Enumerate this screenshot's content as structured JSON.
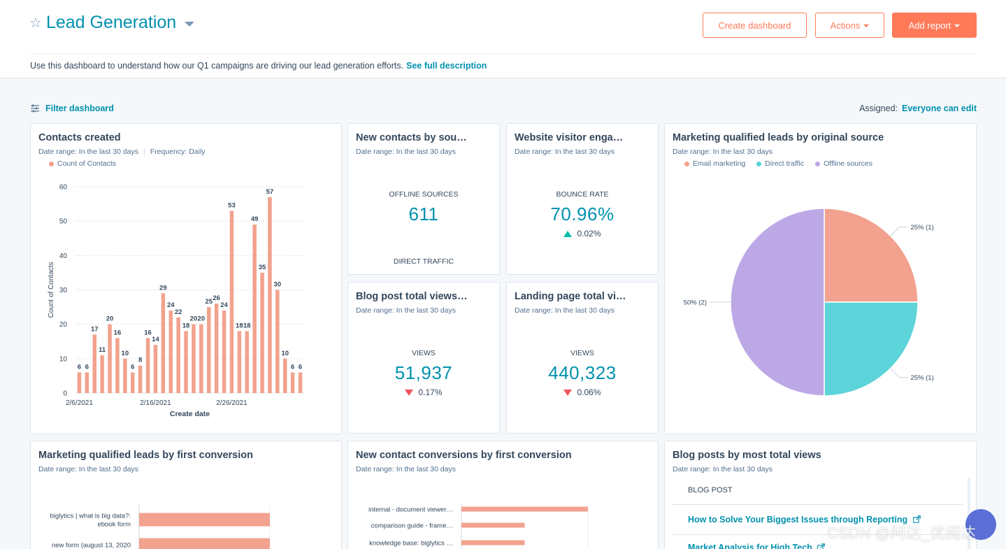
{
  "header": {
    "title": "Lead Generation",
    "create_dashboard": "Create dashboard",
    "actions": "Actions",
    "add_report": "Add report",
    "description": "Use this dashboard to understand how our Q1 campaigns are driving our lead generation efforts.",
    "see_full": "See full description"
  },
  "toolbar": {
    "filter": "Filter dashboard",
    "assigned_label": "Assigned:",
    "assigned_value": "Everyone can edit"
  },
  "colors": {
    "accent": "#0091ae",
    "orange": "#ff7a59",
    "bar": "#f2a28e",
    "teal": "#5cd4d9",
    "lavender": "#bda8e6"
  },
  "cards": {
    "contacts": {
      "title": "Contacts created",
      "date": "Date range: In the last 30 days",
      "freq": "Frequency: Daily",
      "legend": "Count of Contacts"
    },
    "new_contacts": {
      "title": "New contacts by sou…",
      "date": "Date range: In the last 30 days",
      "label": "OFFLINE SOURCES",
      "value": "611",
      "label2": "DIRECT TRAFFIC"
    },
    "website": {
      "title": "Website visitor enga…",
      "date": "Date range: In the last 30 days",
      "label": "BOUNCE RATE",
      "value": "70.96%",
      "delta": "0.02%"
    },
    "blog_views": {
      "title": "Blog post total views…",
      "date": "Date range: In the last 30 days",
      "label": "VIEWS",
      "value": "51,937",
      "delta": "0.17%"
    },
    "landing": {
      "title": "Landing page total vi…",
      "date": "Date range: In the last 30 days",
      "label": "VIEWS",
      "value": "440,323",
      "delta": "0.06%"
    },
    "mql_source": {
      "title": "Marketing qualified leads by original source",
      "date": "Date range: In the last 30 days",
      "legend": [
        "Email marketing",
        "Direct traffic",
        "Offline sources"
      ]
    },
    "mql_first": {
      "title": "Marketing qualified leads by first conversion",
      "date": "Date range: In the last 30 days"
    },
    "new_conv": {
      "title": "New contact conversions by first conversion",
      "date": "Date range: In the last 30 days"
    },
    "blog_posts": {
      "title": "Blog posts by most total views",
      "date": "Date range: In the last 30 days",
      "column": "BLOG POST",
      "rows": [
        "How to Solve Your Biggest Issues through Reporting",
        "Market Analysis for High Tech"
      ]
    }
  },
  "watermark": "CSDN @阿达_优阅达",
  "chart_data": [
    {
      "type": "bar",
      "title": "Contacts created",
      "xlabel": "Create date",
      "ylabel": "Count of Contacts",
      "ylim": [
        0,
        60
      ],
      "yticks": [
        0,
        10,
        20,
        30,
        40,
        50,
        60
      ],
      "xtick_labels": [
        "2/6/2021",
        "2/16/2021",
        "2/26/2021"
      ],
      "series": [
        {
          "name": "Count of Contacts",
          "values": [
            6,
            6,
            17,
            11,
            20,
            16,
            10,
            6,
            8,
            16,
            14,
            29,
            24,
            22,
            18,
            20,
            20,
            25,
            26,
            24,
            53,
            18,
            18,
            49,
            35,
            57,
            30,
            10,
            6,
            6
          ]
        }
      ]
    },
    {
      "type": "pie",
      "title": "Marketing qualified leads by original source",
      "slices": [
        {
          "label": "Email marketing",
          "value": 1,
          "text": "25% (1)"
        },
        {
          "label": "Direct traffic",
          "value": 1,
          "text": "25% (1)"
        },
        {
          "label": "Offline sources",
          "value": 2,
          "text": "50% (2)"
        }
      ]
    },
    {
      "type": "bar",
      "title": "Marketing qualified leads by first conversion",
      "orientation": "horizontal",
      "categories": [
        "biglytics | what is big data?: ebook form",
        "new form (august 13, 2020"
      ],
      "values": [
        1,
        1
      ]
    },
    {
      "type": "bar",
      "title": "New contact conversions by first conversion",
      "orientation": "horizontal",
      "categories": [
        "internal - document viewer…",
        "comparison guide - frame…",
        "knowledge base: biglytics …"
      ],
      "values": [
        1,
        0.5,
        0.5
      ]
    }
  ]
}
